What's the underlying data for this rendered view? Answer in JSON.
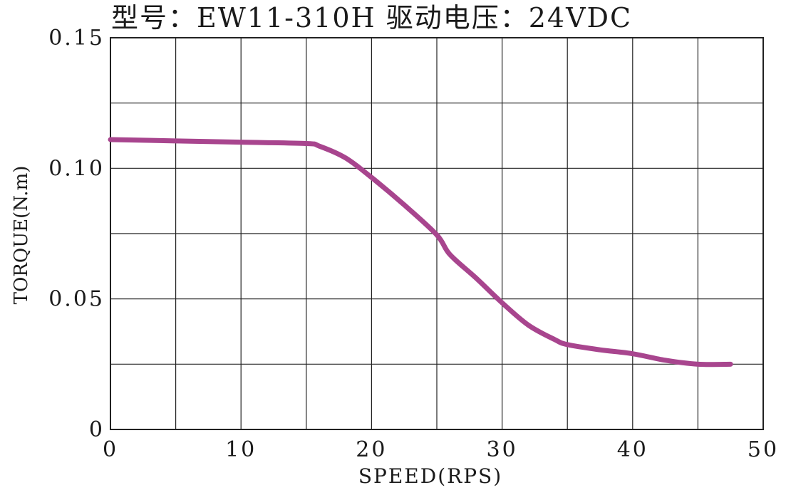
{
  "header": {
    "title": "型号：EW11-310H   驱动电压：24VDC"
  },
  "chart_data": {
    "type": "line",
    "xlabel": "SPEED(RPS)",
    "ylabel": "TORQUE(N.m)",
    "xlim": [
      0,
      50
    ],
    "ylim": [
      0,
      0.15
    ],
    "x_ticks": [
      0,
      10,
      20,
      30,
      40,
      50
    ],
    "x_tick_labels": [
      "0",
      "10",
      "20",
      "30",
      "40",
      "50"
    ],
    "y_ticks": [
      0,
      0.05,
      0.1,
      0.15
    ],
    "y_tick_labels": [
      "0",
      "0.05",
      "0.10",
      "0.15"
    ],
    "grid": true,
    "x_grid_step": 5,
    "y_grid_step": 0.025,
    "series": [
      {
        "color": "#a8458e",
        "x": [
          0,
          5,
          10,
          15,
          16,
          18,
          20,
          22.5,
          25,
          26,
          28,
          30,
          32,
          34,
          35,
          37.5,
          40,
          42.5,
          45,
          47.5
        ],
        "y": [
          0.111,
          0.1105,
          0.11,
          0.1095,
          0.1085,
          0.104,
          0.0965,
          0.086,
          0.0745,
          0.067,
          0.058,
          0.0485,
          0.04,
          0.0345,
          0.0325,
          0.0305,
          0.029,
          0.0265,
          0.025,
          0.025
        ]
      }
    ]
  }
}
